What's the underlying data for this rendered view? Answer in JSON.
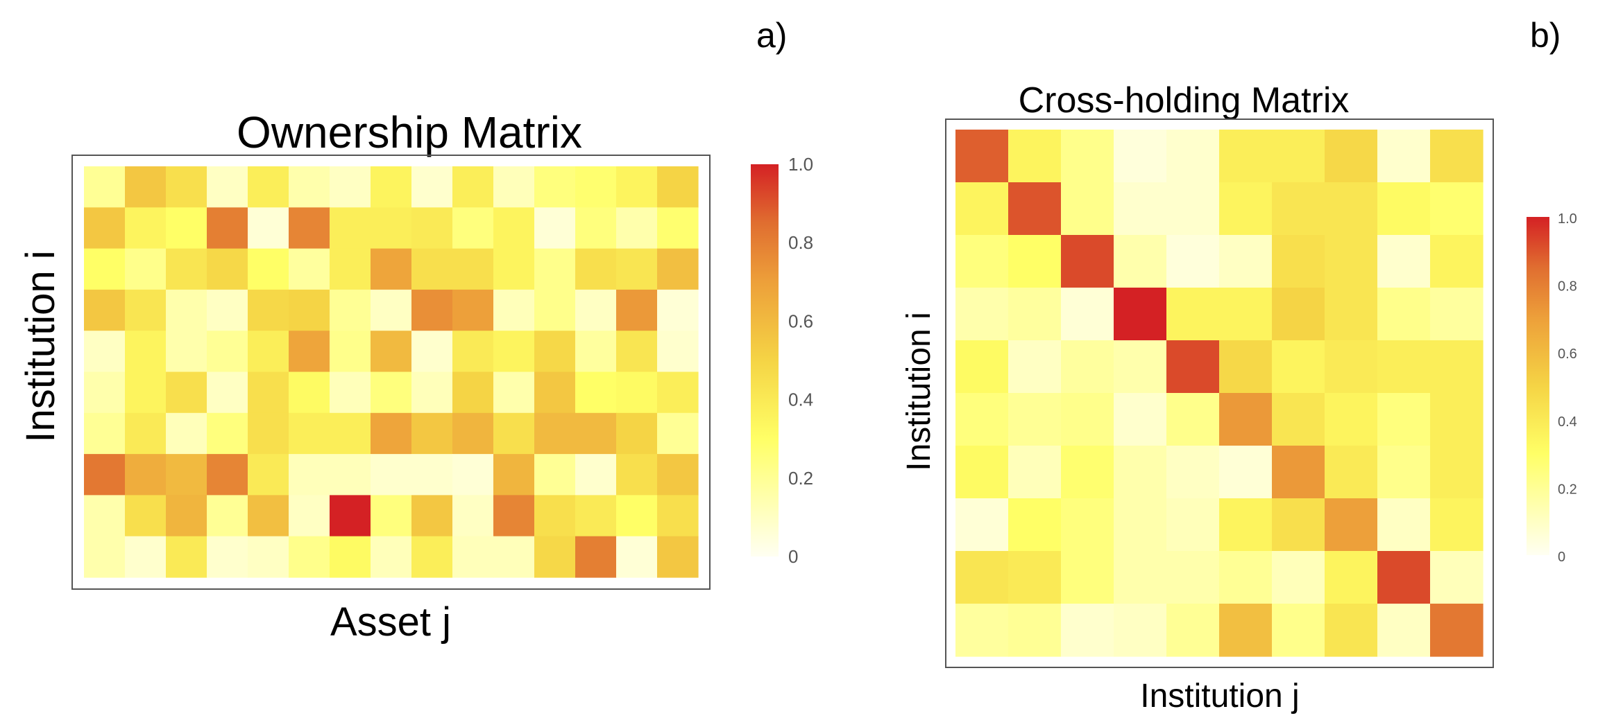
{
  "figure_labels": {
    "a": "a)",
    "b": "b)"
  },
  "chart_data": [
    {
      "type": "heatmap",
      "title": "Ownership Matrix",
      "xlabel": "Asset j",
      "ylabel": "Institution i",
      "colorbar": {
        "range": [
          0,
          1
        ],
        "ticks": [
          "0",
          "0.2",
          "0.4",
          "0.6",
          "0.8",
          "1.0"
        ]
      },
      "colorscale": [
        [
          0,
          "#fffff2"
        ],
        [
          0.3,
          "#ffff66"
        ],
        [
          0.5,
          "#f5d445"
        ],
        [
          0.7,
          "#eda03a"
        ],
        [
          0.85,
          "#e06e30"
        ],
        [
          1,
          "#d42124"
        ]
      ],
      "values": [
        [
          0.2,
          0.55,
          0.45,
          0.1,
          0.38,
          0.15,
          0.1,
          0.35,
          0.08,
          0.38,
          0.12,
          0.25,
          0.28,
          0.35,
          0.5
        ],
        [
          0.55,
          0.35,
          0.3,
          0.8,
          0.06,
          0.78,
          0.38,
          0.38,
          0.4,
          0.25,
          0.35,
          0.06,
          0.25,
          0.15,
          0.28
        ],
        [
          0.3,
          0.22,
          0.42,
          0.48,
          0.3,
          0.18,
          0.38,
          0.68,
          0.45,
          0.45,
          0.35,
          0.22,
          0.45,
          0.42,
          0.58
        ],
        [
          0.55,
          0.42,
          0.15,
          0.1,
          0.48,
          0.5,
          0.2,
          0.1,
          0.75,
          0.7,
          0.12,
          0.22,
          0.1,
          0.72,
          0.06
        ],
        [
          0.1,
          0.35,
          0.15,
          0.2,
          0.38,
          0.68,
          0.22,
          0.6,
          0.08,
          0.4,
          0.35,
          0.48,
          0.18,
          0.42,
          0.08
        ],
        [
          0.15,
          0.35,
          0.45,
          0.1,
          0.45,
          0.32,
          0.12,
          0.25,
          0.12,
          0.5,
          0.15,
          0.55,
          0.3,
          0.32,
          0.38
        ],
        [
          0.2,
          0.4,
          0.12,
          0.25,
          0.45,
          0.38,
          0.38,
          0.68,
          0.55,
          0.62,
          0.45,
          0.6,
          0.6,
          0.5,
          0.2
        ],
        [
          0.82,
          0.65,
          0.6,
          0.78,
          0.4,
          0.12,
          0.12,
          0.08,
          0.08,
          0.06,
          0.62,
          0.2,
          0.08,
          0.45,
          0.55
        ],
        [
          0.15,
          0.45,
          0.62,
          0.2,
          0.58,
          0.1,
          1.0,
          0.25,
          0.55,
          0.1,
          0.78,
          0.45,
          0.4,
          0.3,
          0.45
        ],
        [
          0.15,
          0.08,
          0.4,
          0.08,
          0.1,
          0.22,
          0.32,
          0.12,
          0.38,
          0.12,
          0.12,
          0.48,
          0.8,
          0.06,
          0.55
        ]
      ]
    },
    {
      "type": "heatmap",
      "title": "Cross-holding Matrix",
      "xlabel": "Institution j",
      "ylabel": "Institution i",
      "colorbar": {
        "range": [
          0,
          1
        ],
        "ticks": [
          "0",
          "0.2",
          "0.4",
          "0.6",
          "0.8",
          "1.0"
        ]
      },
      "colorscale": [
        [
          0,
          "#fffff2"
        ],
        [
          0.3,
          "#ffff66"
        ],
        [
          0.5,
          "#f5d445"
        ],
        [
          0.7,
          "#eda03a"
        ],
        [
          0.85,
          "#e06e30"
        ],
        [
          1,
          "#d42124"
        ]
      ],
      "values": [
        [
          0.88,
          0.35,
          0.22,
          0.05,
          0.08,
          0.38,
          0.38,
          0.48,
          0.08,
          0.45
        ],
        [
          0.35,
          0.9,
          0.22,
          0.08,
          0.08,
          0.35,
          0.42,
          0.42,
          0.32,
          0.28
        ],
        [
          0.25,
          0.3,
          0.92,
          0.15,
          0.05,
          0.1,
          0.45,
          0.42,
          0.08,
          0.35
        ],
        [
          0.15,
          0.18,
          0.06,
          1.0,
          0.35,
          0.35,
          0.5,
          0.42,
          0.22,
          0.18
        ],
        [
          0.32,
          0.1,
          0.18,
          0.15,
          0.92,
          0.48,
          0.35,
          0.4,
          0.38,
          0.38
        ],
        [
          0.25,
          0.2,
          0.22,
          0.08,
          0.22,
          0.72,
          0.42,
          0.35,
          0.25,
          0.38
        ],
        [
          0.32,
          0.12,
          0.28,
          0.15,
          0.1,
          0.06,
          0.72,
          0.4,
          0.22,
          0.38
        ],
        [
          0.06,
          0.3,
          0.25,
          0.15,
          0.12,
          0.35,
          0.45,
          0.7,
          0.1,
          0.35
        ],
        [
          0.42,
          0.4,
          0.25,
          0.15,
          0.15,
          0.2,
          0.12,
          0.35,
          0.92,
          0.12
        ],
        [
          0.18,
          0.2,
          0.08,
          0.1,
          0.2,
          0.58,
          0.22,
          0.42,
          0.1,
          0.82
        ]
      ]
    }
  ]
}
